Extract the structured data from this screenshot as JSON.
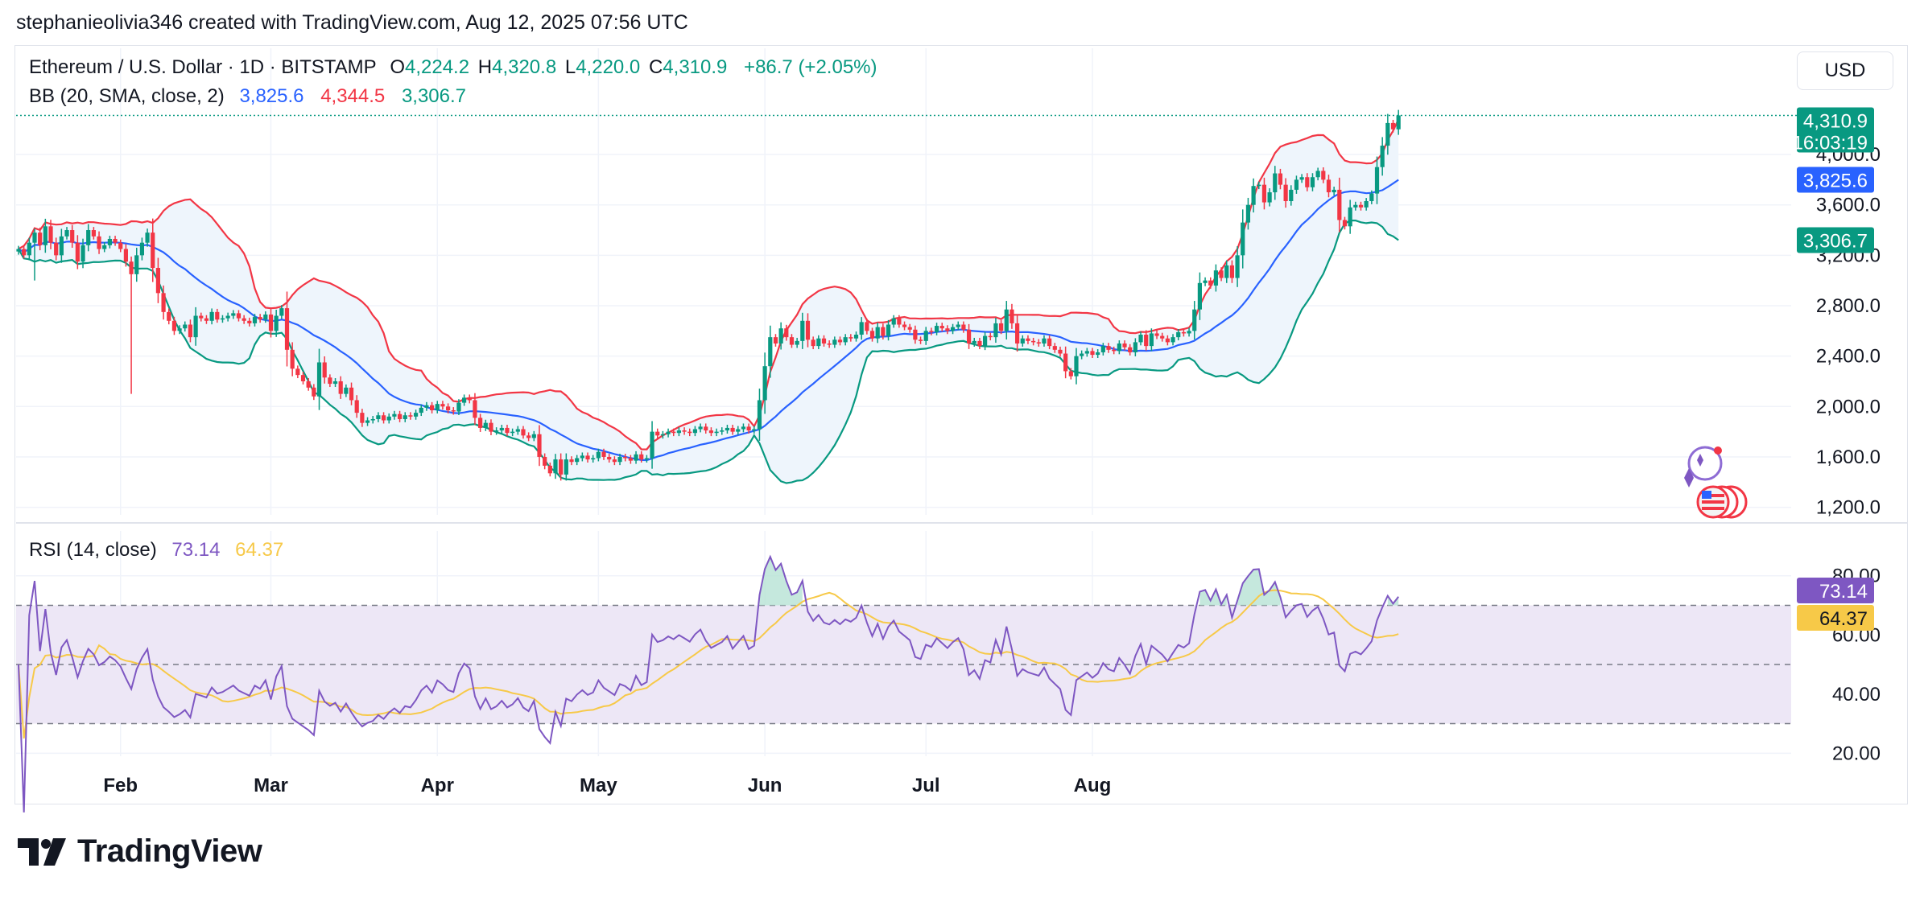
{
  "header": {
    "credit": "stephanieolivia346 created with TradingView.com, Aug 12, 2025 07:56 UTC"
  },
  "legend": {
    "symbol": "Ethereum / U.S. Dollar · 1D · BITSTAMP",
    "open_label": "O",
    "open": "4,224.2",
    "high_label": "H",
    "high": "4,320.8",
    "low_label": "L",
    "low": "4,220.0",
    "close_label": "C",
    "close": "4,310.9",
    "change": "+86.7 (+2.05%)",
    "bb_title": "BB (20, SMA, close, 2)",
    "bb_basis": "3,825.6",
    "bb_upper": "4,344.5",
    "bb_lower": "3,306.7",
    "rsi_title": "RSI (14, close)",
    "rsi_value": "73.14",
    "rsi_ma": "64.37"
  },
  "currency_button": "USD",
  "price_labels": {
    "last": "4,310.9",
    "countdown": "16:03:19",
    "basis": "3,825.6",
    "lower": "3,306.7",
    "rsi": "73.14",
    "rsi_ma": "64.37"
  },
  "brand": "TradingView",
  "colors": {
    "up": "#089981",
    "down": "#f23645",
    "basis": "#2962ff",
    "upper": "#f23645",
    "lower": "#089981",
    "band_fill": "#eef5fc",
    "rsi": "#7e57c2",
    "rsi_ma": "#f7c948",
    "rsi_band": "#ede7f6"
  },
  "icons": [
    "sparkle-events-icon",
    "us-flag-economic-events-icon"
  ],
  "chart_data": [
    {
      "type": "candlestick",
      "title": "Ethereum / U.S. Dollar · 1D · BITSTAMP",
      "x_tick_labels": [
        "Feb",
        "Mar",
        "Apr",
        "May",
        "Jun",
        "Jul",
        "Aug"
      ],
      "x_tick_days": [
        19,
        47,
        78,
        108,
        139,
        169,
        200
      ],
      "first_date": "2025-01-13",
      "y_tick_labels": [
        "1,200.0",
        "1,600.0",
        "2,000.0",
        "2,400.0",
        "2,800.0",
        "3,200.0",
        "3,600.0",
        "4,000.0"
      ],
      "y_ticks": [
        1200,
        1600,
        2000,
        2400,
        2800,
        3200,
        3600,
        4000
      ],
      "ylim": [
        1140,
        4460
      ],
      "close": [
        3250,
        3200,
        3300,
        3380,
        3280,
        3430,
        3300,
        3200,
        3350,
        3400,
        3300,
        3150,
        3280,
        3400,
        3350,
        3250,
        3280,
        3330,
        3300,
        3250,
        3150,
        3050,
        3200,
        3300,
        3380,
        3100,
        2900,
        2750,
        2680,
        2600,
        2620,
        2650,
        2550,
        2720,
        2700,
        2680,
        2750,
        2690,
        2700,
        2720,
        2740,
        2700,
        2680,
        2660,
        2710,
        2690,
        2730,
        2600,
        2720,
        2780,
        2450,
        2300,
        2250,
        2200,
        2150,
        2080,
        2350,
        2230,
        2180,
        2200,
        2100,
        2150,
        2050,
        1950,
        1870,
        1890,
        1900,
        1930,
        1890,
        1920,
        1940,
        1900,
        1930,
        1920,
        1950,
        1990,
        2010,
        1970,
        2020,
        2000,
        1970,
        1960,
        2030,
        2070,
        2050,
        1910,
        1830,
        1870,
        1800,
        1810,
        1830,
        1790,
        1800,
        1820,
        1770,
        1750,
        1780,
        1600,
        1530,
        1470,
        1580,
        1460,
        1580,
        1560,
        1590,
        1610,
        1580,
        1590,
        1640,
        1600,
        1580,
        1560,
        1600,
        1590,
        1570,
        1620,
        1580,
        1590,
        1800,
        1770,
        1780,
        1800,
        1790,
        1810,
        1800,
        1790,
        1820,
        1840,
        1810,
        1790,
        1800,
        1810,
        1830,
        1800,
        1820,
        1840,
        1810,
        1820,
        2050,
        2320,
        2550,
        2500,
        2620,
        2550,
        2490,
        2520,
        2680,
        2530,
        2480,
        2540,
        2500,
        2490,
        2530,
        2510,
        2550,
        2540,
        2570,
        2670,
        2600,
        2540,
        2630,
        2560,
        2650,
        2700,
        2650,
        2630,
        2610,
        2530,
        2520,
        2600,
        2590,
        2640,
        2620,
        2600,
        2630,
        2650,
        2610,
        2500,
        2520,
        2480,
        2560,
        2550,
        2660,
        2600,
        2770,
        2660,
        2500,
        2540,
        2520,
        2510,
        2500,
        2540,
        2480,
        2450,
        2420,
        2280,
        2240,
        2400,
        2420,
        2440,
        2410,
        2430,
        2480,
        2450,
        2440,
        2500,
        2470,
        2430,
        2510,
        2570,
        2480,
        2580,
        2560,
        2540,
        2510,
        2550,
        2590,
        2580,
        2600,
        2770,
        2980,
        3000,
        2960,
        3080,
        3020,
        3120,
        3020,
        3200,
        3460,
        3600,
        3750,
        3760,
        3620,
        3700,
        3850,
        3760,
        3630,
        3720,
        3800,
        3820,
        3740,
        3820,
        3870,
        3800,
        3700,
        3720,
        3480,
        3430,
        3580,
        3600,
        3580,
        3630,
        3690,
        3900,
        4070,
        4250,
        4200,
        4310
      ]
    },
    {
      "type": "line",
      "title": "RSI (14, close)",
      "series": [
        {
          "name": "RSI"
        },
        {
          "name": "RSI MA"
        }
      ],
      "y_tick_labels": [
        "20.00",
        "40.00",
        "60.00",
        "80.00"
      ],
      "y_ticks": [
        20,
        40,
        60,
        80
      ],
      "ylim": [
        19,
        87
      ],
      "band": [
        30,
        70
      ],
      "midline": 50,
      "last_rsi": 73.14,
      "last_rsi_ma": 64.37
    }
  ]
}
